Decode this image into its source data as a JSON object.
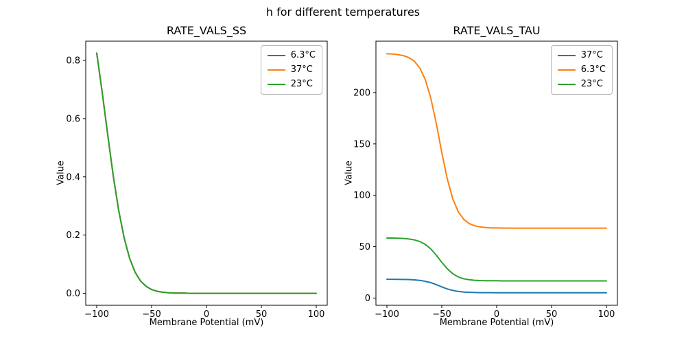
{
  "figure": {
    "title": "h for different temperatures",
    "background": "#ffffff"
  },
  "chart_data": [
    {
      "type": "line",
      "title": "RATE_VALS_SS",
      "xlabel": "Membrane Potential (mV)",
      "ylabel": "Value",
      "xlim": [
        -110,
        110
      ],
      "ylim": [
        -0.041,
        0.866
      ],
      "xticks": [
        -100,
        -50,
        0,
        50,
        100
      ],
      "xticklabels": [
        "−100",
        "−50",
        "0",
        "50",
        "100"
      ],
      "yticks": [
        0.0,
        0.2,
        0.4,
        0.6,
        0.8
      ],
      "yticklabels": [
        "0.0",
        "0.2",
        "0.4",
        "0.6",
        "0.8"
      ],
      "grid": false,
      "legend_position": "upper right",
      "x": [
        -100,
        -95,
        -90,
        -85,
        -80,
        -75,
        -70,
        -65,
        -60,
        -55,
        -50,
        -45,
        -40,
        -35,
        -30,
        -25,
        -20,
        -15,
        -10,
        -5,
        0,
        5,
        10,
        15,
        20,
        25,
        30,
        35,
        40,
        45,
        50,
        55,
        60,
        65,
        70,
        75,
        80,
        85,
        90,
        95,
        100
      ],
      "series": [
        {
          "name": "6.3°C",
          "color": "#1f77b4",
          "values": [
            0.825,
            0.69,
            0.545,
            0.405,
            0.285,
            0.19,
            0.12,
            0.072,
            0.042,
            0.024,
            0.013,
            0.007,
            0.004,
            0.002,
            0.001,
            0.001,
            0.001,
            0,
            0,
            0,
            0,
            0,
            0,
            0,
            0,
            0,
            0,
            0,
            0,
            0,
            0,
            0,
            0,
            0,
            0,
            0,
            0,
            0,
            0,
            0,
            0
          ]
        },
        {
          "name": "37°C",
          "color": "#ff7f0e",
          "values": [
            0.825,
            0.69,
            0.545,
            0.405,
            0.285,
            0.19,
            0.12,
            0.072,
            0.042,
            0.024,
            0.013,
            0.007,
            0.004,
            0.002,
            0.001,
            0.001,
            0.001,
            0,
            0,
            0,
            0,
            0,
            0,
            0,
            0,
            0,
            0,
            0,
            0,
            0,
            0,
            0,
            0,
            0,
            0,
            0,
            0,
            0,
            0,
            0,
            0
          ]
        },
        {
          "name": "23°C",
          "color": "#2ca02c",
          "values": [
            0.825,
            0.69,
            0.545,
            0.405,
            0.285,
            0.19,
            0.12,
            0.072,
            0.042,
            0.024,
            0.013,
            0.007,
            0.004,
            0.002,
            0.001,
            0.001,
            0.001,
            0,
            0,
            0,
            0,
            0,
            0,
            0,
            0,
            0,
            0,
            0,
            0,
            0,
            0,
            0,
            0,
            0,
            0,
            0,
            0,
            0,
            0,
            0,
            0
          ]
        }
      ]
    },
    {
      "type": "line",
      "title": "RATE_VALS_TAU",
      "xlabel": "Membrane Potential (mV)",
      "ylabel": "Value",
      "xlim": [
        -110,
        110
      ],
      "ylim": [
        -7,
        250
      ],
      "xticks": [
        -100,
        -50,
        0,
        50,
        100
      ],
      "xticklabels": [
        "−100",
        "−50",
        "0",
        "50",
        "100"
      ],
      "yticks": [
        0,
        50,
        100,
        150,
        200
      ],
      "yticklabels": [
        "0",
        "50",
        "100",
        "150",
        "200"
      ],
      "grid": false,
      "legend_position": "upper right",
      "x": [
        -100,
        -95,
        -90,
        -85,
        -80,
        -75,
        -70,
        -65,
        -60,
        -55,
        -50,
        -45,
        -40,
        -35,
        -30,
        -25,
        -20,
        -15,
        -10,
        -5,
        0,
        5,
        10,
        15,
        20,
        25,
        30,
        35,
        40,
        45,
        50,
        55,
        60,
        65,
        70,
        75,
        80,
        85,
        90,
        95,
        100
      ],
      "series": [
        {
          "name": "37°C",
          "color": "#1f77b4",
          "values": [
            18.3,
            18.3,
            18.2,
            18.1,
            18.0,
            17.7,
            17.2,
            16.3,
            15.0,
            13.1,
            10.9,
            8.9,
            7.4,
            6.5,
            5.9,
            5.6,
            5.4,
            5.3,
            5.3,
            5.3,
            5.2,
            5.2,
            5.2,
            5.2,
            5.2,
            5.2,
            5.2,
            5.2,
            5.2,
            5.2,
            5.2,
            5.2,
            5.2,
            5.2,
            5.2,
            5.2,
            5.2,
            5.2,
            5.2,
            5.2,
            5.2
          ]
        },
        {
          "name": "6.3°C",
          "color": "#ff7f0e",
          "values": [
            237.7,
            237.5,
            236.9,
            235.9,
            234.0,
            230.5,
            223.9,
            212.5,
            194.5,
            169.8,
            141.7,
            116.0,
            96.6,
            84.0,
            76.6,
            72.5,
            70.4,
            69.2,
            68.6,
            68.3,
            68.2,
            68.1,
            68.1,
            68.0,
            68.0,
            68.0,
            68.0,
            68.0,
            68.0,
            68.0,
            68.0,
            68.0,
            68.0,
            68.0,
            68.0,
            68.0,
            68.0,
            68.0,
            68.0,
            68.0,
            68.0
          ]
        },
        {
          "name": "23°C",
          "color": "#2ca02c",
          "values": [
            58.4,
            58.4,
            58.2,
            58.0,
            57.5,
            56.6,
            55.0,
            52.2,
            47.8,
            41.7,
            34.8,
            28.5,
            23.7,
            20.6,
            18.8,
            17.8,
            17.3,
            17.0,
            16.9,
            16.8,
            16.8,
            16.7,
            16.7,
            16.7,
            16.7,
            16.7,
            16.7,
            16.7,
            16.7,
            16.7,
            16.7,
            16.7,
            16.7,
            16.7,
            16.7,
            16.7,
            16.7,
            16.7,
            16.7,
            16.7,
            16.7
          ]
        }
      ]
    }
  ]
}
